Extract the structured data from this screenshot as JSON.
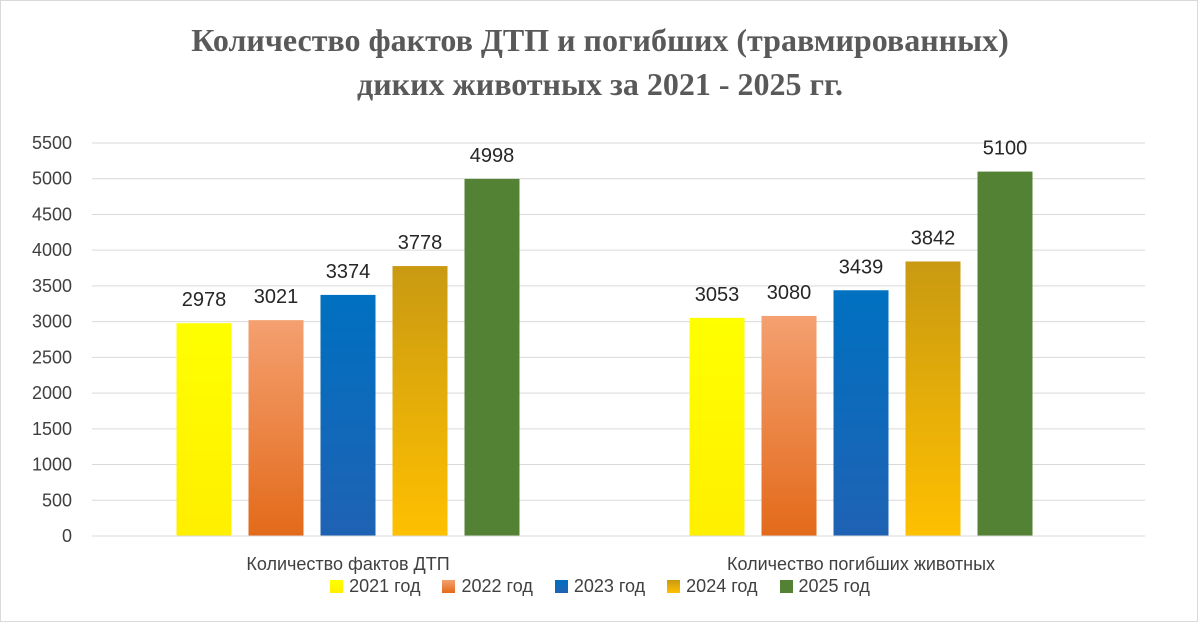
{
  "chart_data": {
    "type": "bar",
    "title_line1": "Количество фактов ДТП и погибших (травмированных)",
    "title_line2": "диких животных за 2021 - 2025 гг.",
    "categories": [
      "Количество фактов ДТП",
      "Количество погибших животных"
    ],
    "series": [
      {
        "name": "2021 год",
        "values": [
          2978,
          3053
        ],
        "color": "#FFFF00",
        "color2": "#FFEF00"
      },
      {
        "name": "2022 год",
        "values": [
          3021,
          3080
        ],
        "color": "#F4A070",
        "color2": "#E36A1A"
      },
      {
        "name": "2023 год",
        "values": [
          3374,
          3439
        ],
        "color": "#0070C0",
        "color2": "#1F62B4"
      },
      {
        "name": "2024 год",
        "values": [
          3778,
          3842
        ],
        "color": "#C99A12",
        "color2": "#FFC000"
      },
      {
        "name": "2025 год",
        "values": [
          4998,
          5100
        ],
        "color": "#548235",
        "color2": "#548235"
      }
    ],
    "y_ticks": [
      "0",
      "500",
      "1000",
      "1500",
      "2000",
      "2500",
      "3000",
      "3500",
      "4000",
      "4500",
      "5000",
      "5500"
    ],
    "ylim": [
      0,
      5500
    ],
    "grid": true,
    "legend_position": "bottom"
  }
}
